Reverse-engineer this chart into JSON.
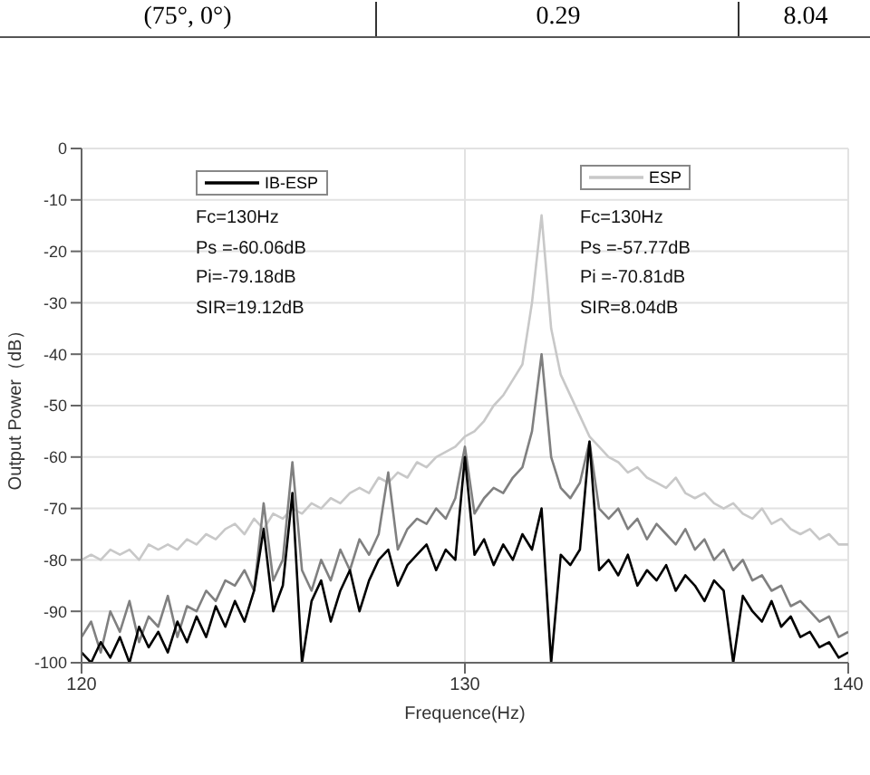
{
  "chart_data": {
    "type": "line",
    "xlabel": "Frequence(Hz)",
    "ylabel": "Output Power（dB）",
    "x": [
      120,
      120.25,
      120.5,
      120.75,
      121,
      121.25,
      121.5,
      121.75,
      122,
      122.25,
      122.5,
      122.75,
      123,
      123.25,
      123.5,
      123.75,
      124,
      124.25,
      124.5,
      124.75,
      125,
      125.25,
      125.5,
      125.75,
      126,
      126.25,
      126.5,
      126.75,
      127,
      127.25,
      127.5,
      127.75,
      128,
      128.25,
      128.5,
      128.75,
      129,
      129.25,
      129.5,
      129.75,
      130,
      130.25,
      130.5,
      130.75,
      131,
      131.25,
      131.5,
      131.75,
      132,
      132.25,
      132.5,
      132.75,
      133,
      133.25,
      133.5,
      133.75,
      134,
      134.25,
      134.5,
      134.75,
      135,
      135.25,
      135.5,
      135.75,
      136,
      136.25,
      136.5,
      136.75,
      137,
      137.25,
      137.5,
      137.75,
      138,
      138.25,
      138.5,
      138.75,
      139,
      139.25,
      139.5,
      139.75,
      140
    ],
    "series": [
      {
        "name": "ESP",
        "color": "#c8c8c8",
        "values": [
          -80,
          -79,
          -80,
          -78,
          -79,
          -78,
          -80,
          -77,
          -78,
          -77,
          -78,
          -76,
          -77,
          -75,
          -76,
          -74,
          -73,
          -75,
          -72,
          -74,
          -71,
          -72,
          -70,
          -71,
          -69,
          -70,
          -68,
          -69,
          -67,
          -66,
          -67,
          -64,
          -65,
          -63,
          -64,
          -61,
          -62,
          -60,
          -59,
          -58,
          -56,
          -55,
          -53,
          -50,
          -48,
          -45,
          -42,
          -30,
          -13,
          -35,
          -44,
          -48,
          -52,
          -56,
          -58,
          -60,
          -61,
          -63,
          -62,
          -64,
          -65,
          -66,
          -64,
          -67,
          -68,
          -67,
          -69,
          -70,
          -69,
          -71,
          -72,
          -70,
          -73,
          -72,
          -74,
          -75,
          -74,
          -76,
          -75,
          -77,
          -77
        ]
      },
      {
        "color": "#808080",
        "values": [
          -95,
          -92,
          -98,
          -90,
          -94,
          -88,
          -96,
          -91,
          -93,
          -87,
          -95,
          -89,
          -90,
          -86,
          -88,
          -84,
          -85,
          -82,
          -86,
          -69,
          -84,
          -80,
          -61,
          -82,
          -86,
          -80,
          -84,
          -78,
          -82,
          -76,
          -79,
          -75,
          -63,
          -78,
          -74,
          -72,
          -73,
          -70,
          -72,
          -68,
          -58,
          -71,
          -68,
          -66,
          -67,
          -64,
          -62,
          -55,
          -40,
          -60,
          -66,
          -68,
          -65,
          -57,
          -70,
          -72,
          -70,
          -74,
          -72,
          -76,
          -73,
          -75,
          -77,
          -74,
          -78,
          -76,
          -80,
          -78,
          -82,
          -80,
          -84,
          -83,
          -86,
          -85,
          -89,
          -88,
          -90,
          -92,
          -91,
          -95,
          -94
        ]
      },
      {
        "name": "IB-ESP",
        "color": "#000000",
        "values": [
          -98,
          -100,
          -96,
          -99,
          -95,
          -100,
          -93,
          -97,
          -94,
          -98,
          -92,
          -96,
          -91,
          -95,
          -89,
          -93,
          -88,
          -92,
          -86,
          -74,
          -90,
          -85,
          -67,
          -100,
          -88,
          -84,
          -92,
          -86,
          -82,
          -90,
          -84,
          -80,
          -78,
          -85,
          -81,
          -79,
          -77,
          -82,
          -78,
          -80,
          -60,
          -79,
          -76,
          -81,
          -77,
          -80,
          -75,
          -78,
          -70,
          -100,
          -79,
          -81,
          -78,
          -57,
          -82,
          -80,
          -83,
          -79,
          -85,
          -82,
          -84,
          -81,
          -86,
          -83,
          -85,
          -88,
          -84,
          -86,
          -100,
          -87,
          -90,
          -92,
          -88,
          -93,
          -91,
          -95,
          -94,
          -97,
          -96,
          -99,
          -98
        ]
      }
    ],
    "xlim": [
      120,
      140
    ],
    "xticks": [
      120,
      130,
      140
    ],
    "ylim": [
      -100,
      0
    ],
    "yticks": [
      -100,
      -90,
      -80,
      -70,
      -60,
      -50,
      -40,
      -30,
      -20,
      -10,
      0
    ],
    "grid": true,
    "legend": "top",
    "marker": "none",
    "line_style": "solid",
    "annotations": [
      "(75°, 0°)",
      "0.29",
      "8.04",
      "Fc=130Hz",
      "Ps =-60.06dB",
      "Pi=-79.18dB",
      "SIR=19.12dB",
      "Fc=130Hz",
      "Ps =-57.77dB",
      "Pi =-70.81dB",
      "SIR=8.04dB"
    ]
  }
}
